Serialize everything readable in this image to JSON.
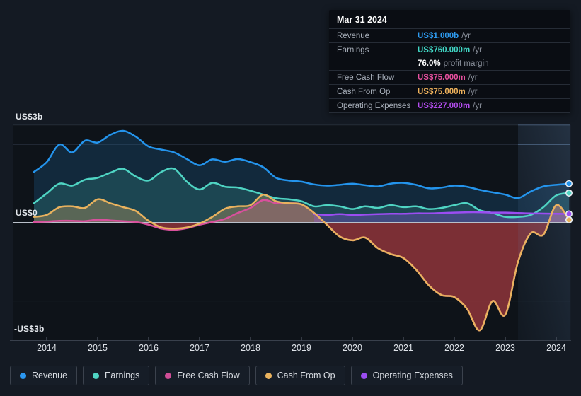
{
  "tooltip": {
    "date": "Mar 31 2024",
    "rows": [
      {
        "label": "Revenue",
        "value": "US$1.000b",
        "suffix": "/yr",
        "color": "#2e9bf0",
        "divider": true
      },
      {
        "label": "Earnings",
        "value": "US$760.000m",
        "suffix": "/yr",
        "color": "#41d8c6",
        "divider": false
      },
      {
        "label": "",
        "value": "76.0%",
        "suffix": "profit margin",
        "color": "#ffffff",
        "divider": true
      },
      {
        "label": "Free Cash Flow",
        "value": "US$75.000m",
        "suffix": "/yr",
        "color": "#e8509f",
        "divider": true
      },
      {
        "label": "Cash From Op",
        "value": "US$75.000m",
        "suffix": "/yr",
        "color": "#f0b35c",
        "divider": true
      },
      {
        "label": "Operating Expenses",
        "value": "US$227.000m",
        "suffix": "/yr",
        "color": "#b44df0",
        "divider": true
      }
    ]
  },
  "axis": {
    "y_top": "US$3b",
    "y_zero": "US$0",
    "y_bottom": "-US$3b"
  },
  "legend": {
    "items": [
      {
        "label": "Revenue",
        "color": "#2b97f0"
      },
      {
        "label": "Earnings",
        "color": "#4fd4c3"
      },
      {
        "label": "Free Cash Flow",
        "color": "#cf4d96"
      },
      {
        "label": "Cash From Op",
        "color": "#e9b25e"
      },
      {
        "label": "Operating Expenses",
        "color": "#9b4df2"
      }
    ]
  },
  "chart_data": {
    "type": "area",
    "title": "",
    "x_unit": "year",
    "unit": "US$ billions per year",
    "ylim": [
      -3,
      3
    ],
    "y_tick_labels": [
      "US$3b",
      "US$0",
      "-US$3b"
    ],
    "x_ticks": [
      2014,
      2015,
      2016,
      2017,
      2018,
      2019,
      2020,
      2021,
      2022,
      2023,
      2024
    ],
    "highlight_band": {
      "from": 2023.25,
      "to": 2024.28
    },
    "legend_position": "bottom",
    "x": [
      2013.75,
      2014,
      2014.25,
      2014.5,
      2014.75,
      2015,
      2015.25,
      2015.5,
      2015.75,
      2016,
      2016.25,
      2016.5,
      2016.75,
      2017,
      2017.25,
      2017.5,
      2017.75,
      2018,
      2018.25,
      2018.5,
      2018.75,
      2019,
      2019.25,
      2019.5,
      2019.75,
      2020,
      2020.25,
      2020.5,
      2020.75,
      2021,
      2021.25,
      2021.5,
      2021.75,
      2022,
      2022.25,
      2022.5,
      2022.75,
      2023,
      2023.25,
      2023.5,
      2023.75,
      2024,
      2024.25
    ],
    "series": [
      {
        "name": "Revenue",
        "color": "#2494ec",
        "values": [
          1.3,
          1.55,
          2.0,
          1.8,
          2.1,
          2.05,
          2.25,
          2.35,
          2.2,
          1.95,
          1.87,
          1.8,
          1.63,
          1.47,
          1.62,
          1.56,
          1.63,
          1.55,
          1.42,
          1.15,
          1.08,
          1.05,
          0.98,
          0.95,
          0.97,
          1.0,
          0.96,
          0.93,
          1.0,
          1.02,
          0.97,
          0.88,
          0.9,
          0.95,
          0.92,
          0.84,
          0.78,
          0.72,
          0.63,
          0.8,
          0.93,
          0.97,
          1.0
        ]
      },
      {
        "name": "Earnings",
        "color": "#4fd4c3",
        "values": [
          0.5,
          0.75,
          1.0,
          0.95,
          1.1,
          1.15,
          1.28,
          1.38,
          1.18,
          1.08,
          1.3,
          1.38,
          1.05,
          0.85,
          1.02,
          0.92,
          0.9,
          0.82,
          0.72,
          0.63,
          0.6,
          0.55,
          0.42,
          0.45,
          0.42,
          0.35,
          0.42,
          0.38,
          0.45,
          0.4,
          0.42,
          0.35,
          0.38,
          0.45,
          0.5,
          0.32,
          0.25,
          0.15,
          0.15,
          0.2,
          0.4,
          0.7,
          0.76
        ]
      },
      {
        "name": "Free Cash Flow",
        "color": "#d8509c",
        "values": [
          0.02,
          0.03,
          0.05,
          0.05,
          0.04,
          0.08,
          0.06,
          0.04,
          0.02,
          -0.05,
          -0.15,
          -0.18,
          -0.14,
          -0.05,
          0.02,
          0.1,
          0.25,
          0.38,
          0.58,
          0.5,
          0.5,
          0.47,
          0.25,
          -0.05,
          -0.35,
          -0.45,
          -0.38,
          -0.65,
          -0.8,
          -0.9,
          -1.2,
          -1.6,
          -1.85,
          -1.9,
          -2.2,
          -2.75,
          -2.0,
          -2.35,
          -1.0,
          -0.27,
          -0.3,
          0.45,
          0.075
        ]
      },
      {
        "name": "Cash From Op",
        "color": "#e9b25e",
        "values": [
          0.15,
          0.2,
          0.4,
          0.42,
          0.38,
          0.6,
          0.5,
          0.4,
          0.3,
          0.05,
          -0.12,
          -0.15,
          -0.12,
          -0.02,
          0.15,
          0.36,
          0.42,
          0.45,
          0.72,
          0.55,
          0.5,
          0.47,
          0.25,
          -0.05,
          -0.35,
          -0.45,
          -0.38,
          -0.65,
          -0.8,
          -0.9,
          -1.2,
          -1.6,
          -1.85,
          -1.9,
          -2.2,
          -2.75,
          -2.0,
          -2.35,
          -1.0,
          -0.27,
          -0.3,
          0.45,
          0.075
        ]
      },
      {
        "name": "Operating Expenses",
        "color": "#9b4df2",
        "values": [
          null,
          null,
          null,
          null,
          null,
          null,
          null,
          null,
          null,
          null,
          null,
          null,
          null,
          null,
          null,
          null,
          null,
          null,
          null,
          null,
          null,
          null,
          0.22,
          0.2,
          0.22,
          0.2,
          0.21,
          0.22,
          0.23,
          0.23,
          0.24,
          0.24,
          0.25,
          0.26,
          0.27,
          0.27,
          0.26,
          0.26,
          0.25,
          0.24,
          0.235,
          0.23,
          0.227
        ]
      }
    ]
  }
}
